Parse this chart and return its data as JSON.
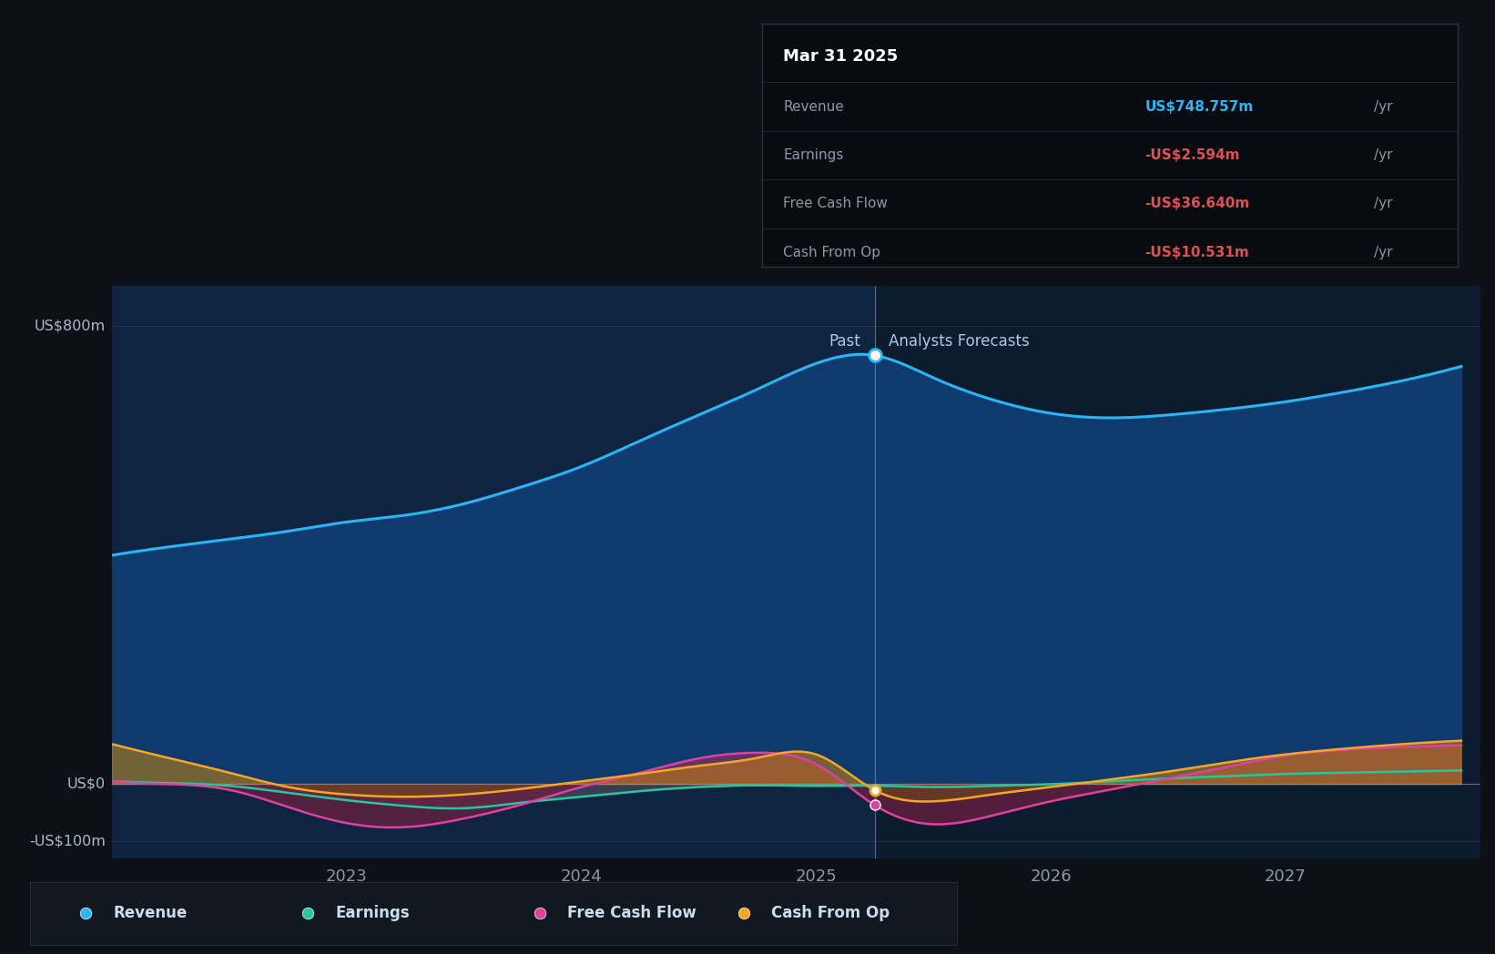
{
  "bg_color": "#0d1117",
  "past_bg_color": "#0e2440",
  "forecast_bg_color": "#0d1b2e",
  "ylabel_800": "US$800m",
  "ylabel_0": "US$0",
  "ylabel_neg100": "-US$100m",
  "x_labels": [
    "2023",
    "2024",
    "2025",
    "2026",
    "2027"
  ],
  "past_label": "Past",
  "forecast_label": "Analysts Forecasts",
  "divider_x": 2025.25,
  "tooltip_title": "Mar 31 2025",
  "tooltip_revenue": "US$748.757m",
  "tooltip_earnings": "-US$2.594m",
  "tooltip_fcf": "-US$36.640m",
  "tooltip_cashop": "-US$10.531m",
  "revenue_color": "#29b6f6",
  "earnings_color": "#26c6a0",
  "fcf_color": "#e040a0",
  "cashop_color": "#f5a623",
  "red_color": "#e05050",
  "revenue_fill_color": "#0e3a6e",
  "revenue_x": [
    2022.0,
    2022.25,
    2022.5,
    2022.75,
    2023.0,
    2023.25,
    2023.5,
    2023.75,
    2024.0,
    2024.25,
    2024.5,
    2024.75,
    2025.0,
    2025.25,
    2025.5,
    2025.75,
    2026.0,
    2026.25,
    2026.5,
    2026.75,
    2027.0,
    2027.25,
    2027.5,
    2027.75
  ],
  "revenue_y": [
    400,
    415,
    428,
    442,
    458,
    470,
    490,
    520,
    555,
    600,
    645,
    690,
    735,
    749,
    710,
    672,
    648,
    640,
    645,
    655,
    668,
    685,
    705,
    730
  ],
  "earnings_x": [
    2022.0,
    2022.25,
    2022.5,
    2022.75,
    2023.0,
    2023.25,
    2023.5,
    2023.75,
    2024.0,
    2024.25,
    2024.5,
    2024.75,
    2025.0,
    2025.25,
    2025.5,
    2025.75,
    2026.0,
    2026.25,
    2026.5,
    2026.75,
    2027.0,
    2027.25,
    2027.5,
    2027.75
  ],
  "earnings_y": [
    5,
    2,
    -3,
    -15,
    -28,
    -38,
    -42,
    -32,
    -22,
    -12,
    -5,
    -2,
    -3,
    -2.6,
    -5,
    -3,
    0,
    5,
    10,
    14,
    18,
    20,
    22,
    24
  ],
  "fcf_x": [
    2022.0,
    2022.25,
    2022.5,
    2022.75,
    2023.0,
    2023.25,
    2023.5,
    2023.75,
    2024.0,
    2024.25,
    2024.5,
    2024.75,
    2025.0,
    2025.25,
    2025.5,
    2025.75,
    2026.0,
    2026.25,
    2026.5,
    2026.75,
    2027.0,
    2027.25,
    2027.5,
    2027.75
  ],
  "fcf_y": [
    5,
    0,
    -10,
    -40,
    -68,
    -75,
    -60,
    -35,
    -5,
    20,
    45,
    55,
    35,
    -36.6,
    -70,
    -55,
    -30,
    -10,
    10,
    30,
    50,
    60,
    65,
    68
  ],
  "cashop_x": [
    2022.0,
    2022.25,
    2022.5,
    2022.75,
    2023.0,
    2023.25,
    2023.5,
    2023.75,
    2024.0,
    2024.25,
    2024.5,
    2024.75,
    2025.0,
    2025.25,
    2025.5,
    2025.75,
    2026.0,
    2026.25,
    2026.5,
    2026.75,
    2027.0,
    2027.25,
    2027.5,
    2027.75
  ],
  "cashop_y": [
    70,
    45,
    20,
    -5,
    -18,
    -22,
    -18,
    -8,
    5,
    18,
    32,
    46,
    52,
    -10.5,
    -30,
    -18,
    -5,
    8,
    22,
    38,
    52,
    62,
    70,
    76
  ],
  "xlim": [
    2022.0,
    2027.83
  ],
  "ylim_main": [
    -130,
    870
  ],
  "legend_items": [
    "Revenue",
    "Earnings",
    "Free Cash Flow",
    "Cash From Op"
  ],
  "legend_colors": [
    "#29b6f6",
    "#26c6a0",
    "#e040a0",
    "#f5a623"
  ]
}
